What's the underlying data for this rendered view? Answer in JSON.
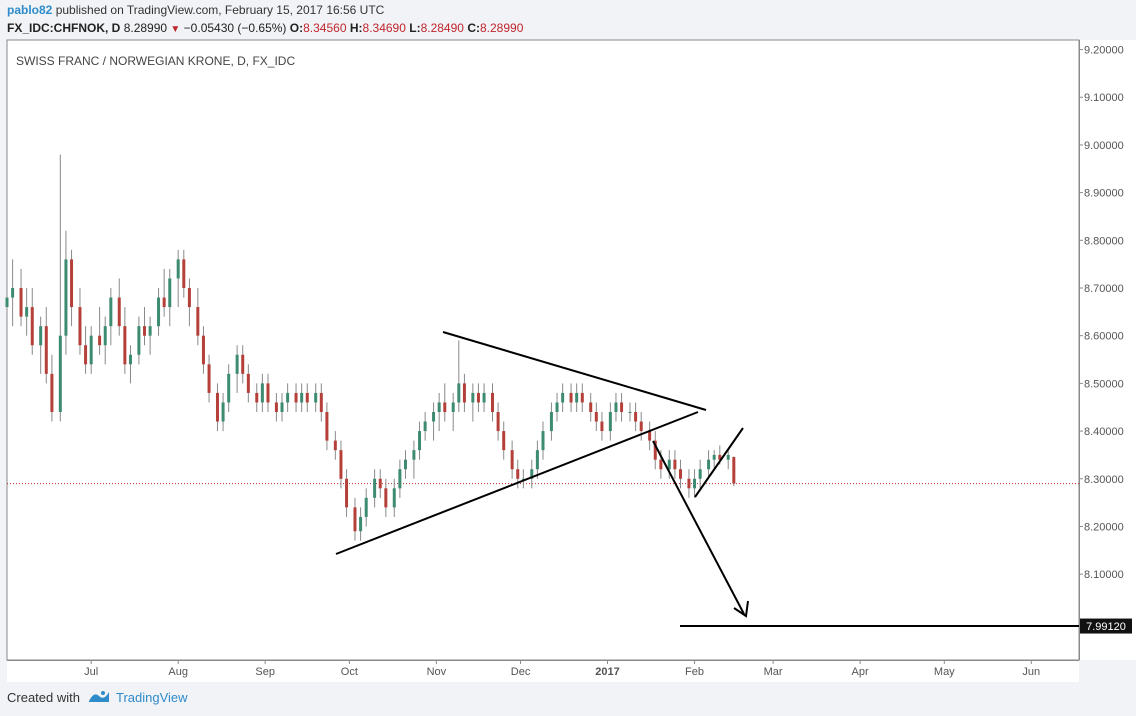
{
  "header": {
    "user": "pablo82",
    "published": "published on TradingView.com, February 15, 2017 16:56 UTC"
  },
  "ohlc": {
    "symbol": "FX_IDC:CHFNOK, D",
    "last": "8.28990",
    "change": "−0.05430 (−0.65%)",
    "o_label": "O:",
    "o": "8.34560",
    "h_label": "H:",
    "h": "8.34690",
    "l_label": "L:",
    "l": "8.28490",
    "c_label": "C:",
    "c": "8.28990"
  },
  "footer": {
    "created": "Created with",
    "brand": "TradingView"
  },
  "colors": {
    "up": "#3d8b70",
    "down": "#b5403a",
    "wick": "#8a8a8a",
    "accent": "#2f8ccb",
    "priceline": "#c0262d"
  },
  "chart_data": {
    "type": "candlestick",
    "title": "SWISS FRANC / NORWEGIAN KRONE, D, FX_IDC",
    "ylim": [
      7.92,
      9.22
    ],
    "y_ticks": [
      8.1,
      8.2,
      8.3,
      8.4,
      8.5,
      8.6,
      8.7,
      8.8,
      8.9,
      9.0,
      9.1,
      9.2
    ],
    "y_tick_labels": [
      "8.10000",
      "8.20000",
      "8.30000",
      "8.40000",
      "8.50000",
      "8.60000",
      "8.70000",
      "8.80000",
      "8.90000",
      "9.00000",
      "9.10000",
      "9.20000"
    ],
    "x_range": [
      "2016-06-01",
      "2017-06-18"
    ],
    "x_ticks": [
      {
        "date": "2016-07-01",
        "label": "Jul",
        "bold": false
      },
      {
        "date": "2016-08-01",
        "label": "Aug",
        "bold": false
      },
      {
        "date": "2016-09-01",
        "label": "Sep",
        "bold": false
      },
      {
        "date": "2016-10-01",
        "label": "Oct",
        "bold": false
      },
      {
        "date": "2016-11-01",
        "label": "Nov",
        "bold": false
      },
      {
        "date": "2016-12-01",
        "label": "Dec",
        "bold": false
      },
      {
        "date": "2017-01-01",
        "label": "2017",
        "bold": true
      },
      {
        "date": "2017-02-01",
        "label": "Feb",
        "bold": false
      },
      {
        "date": "2017-03-01",
        "label": "Mar",
        "bold": false
      },
      {
        "date": "2017-04-01",
        "label": "Apr",
        "bold": false
      },
      {
        "date": "2017-05-01",
        "label": "May",
        "bold": false
      },
      {
        "date": "2017-06-01",
        "label": "Jun",
        "bold": false
      }
    ],
    "last_price": 8.2899,
    "target_label": "7.99120",
    "target_price": 7.9912,
    "candles": [
      [
        "2016-06-01",
        8.66,
        8.72,
        8.58,
        8.68
      ],
      [
        "2016-06-03",
        8.68,
        8.76,
        8.62,
        8.7
      ],
      [
        "2016-06-06",
        8.7,
        8.74,
        8.62,
        8.64
      ],
      [
        "2016-06-08",
        8.64,
        8.7,
        8.6,
        8.66
      ],
      [
        "2016-06-10",
        8.66,
        8.7,
        8.56,
        8.58
      ],
      [
        "2016-06-13",
        8.58,
        8.64,
        8.52,
        8.62
      ],
      [
        "2016-06-15",
        8.62,
        8.66,
        8.5,
        8.52
      ],
      [
        "2016-06-17",
        8.52,
        8.56,
        8.42,
        8.44
      ],
      [
        "2016-06-20",
        8.44,
        8.98,
        8.42,
        8.6
      ],
      [
        "2016-06-22",
        8.6,
        8.82,
        8.56,
        8.76
      ],
      [
        "2016-06-24",
        8.76,
        8.78,
        8.62,
        8.66
      ],
      [
        "2016-06-27",
        8.66,
        8.7,
        8.56,
        8.58
      ],
      [
        "2016-06-29",
        8.58,
        8.62,
        8.52,
        8.54
      ],
      [
        "2016-07-01",
        8.54,
        8.62,
        8.52,
        8.6
      ],
      [
        "2016-07-04",
        8.6,
        8.66,
        8.56,
        8.58
      ],
      [
        "2016-07-06",
        8.58,
        8.64,
        8.54,
        8.62
      ],
      [
        "2016-07-08",
        8.62,
        8.7,
        8.58,
        8.68
      ],
      [
        "2016-07-11",
        8.68,
        8.72,
        8.6,
        8.62
      ],
      [
        "2016-07-13",
        8.62,
        8.66,
        8.52,
        8.54
      ],
      [
        "2016-07-15",
        8.54,
        8.58,
        8.5,
        8.56
      ],
      [
        "2016-07-18",
        8.56,
        8.64,
        8.54,
        8.62
      ],
      [
        "2016-07-20",
        8.62,
        8.66,
        8.58,
        8.6
      ],
      [
        "2016-07-22",
        8.6,
        8.64,
        8.56,
        8.62
      ],
      [
        "2016-07-25",
        8.62,
        8.7,
        8.6,
        8.68
      ],
      [
        "2016-07-27",
        8.68,
        8.74,
        8.64,
        8.66
      ],
      [
        "2016-07-29",
        8.66,
        8.74,
        8.62,
        8.72
      ],
      [
        "2016-08-01",
        8.72,
        8.78,
        8.66,
        8.76
      ],
      [
        "2016-08-03",
        8.76,
        8.78,
        8.68,
        8.7
      ],
      [
        "2016-08-05",
        8.7,
        8.72,
        8.62,
        8.66
      ],
      [
        "2016-08-08",
        8.66,
        8.7,
        8.58,
        8.6
      ],
      [
        "2016-08-10",
        8.6,
        8.62,
        8.52,
        8.54
      ],
      [
        "2016-08-12",
        8.54,
        8.56,
        8.46,
        8.48
      ],
      [
        "2016-08-15",
        8.48,
        8.5,
        8.4,
        8.42
      ],
      [
        "2016-08-17",
        8.42,
        8.48,
        8.4,
        8.46
      ],
      [
        "2016-08-19",
        8.46,
        8.54,
        8.44,
        8.52
      ],
      [
        "2016-08-22",
        8.52,
        8.58,
        8.48,
        8.56
      ],
      [
        "2016-08-24",
        8.56,
        8.58,
        8.5,
        8.52
      ],
      [
        "2016-08-26",
        8.52,
        8.54,
        8.46,
        8.48
      ],
      [
        "2016-08-29",
        8.48,
        8.5,
        8.44,
        8.46
      ],
      [
        "2016-08-31",
        8.46,
        8.52,
        8.44,
        8.5
      ],
      [
        "2016-09-02",
        8.5,
        8.52,
        8.44,
        8.46
      ],
      [
        "2016-09-05",
        8.46,
        8.48,
        8.42,
        8.44
      ],
      [
        "2016-09-07",
        8.44,
        8.48,
        8.42,
        8.46
      ],
      [
        "2016-09-09",
        8.46,
        8.5,
        8.44,
        8.48
      ],
      [
        "2016-09-12",
        8.48,
        8.5,
        8.44,
        8.46
      ],
      [
        "2016-09-14",
        8.46,
        8.5,
        8.44,
        8.48
      ],
      [
        "2016-09-16",
        8.48,
        8.5,
        8.44,
        8.46
      ],
      [
        "2016-09-19",
        8.46,
        8.5,
        8.44,
        8.48
      ],
      [
        "2016-09-21",
        8.48,
        8.5,
        8.42,
        8.44
      ],
      [
        "2016-09-23",
        8.44,
        8.46,
        8.36,
        8.38
      ],
      [
        "2016-09-26",
        8.38,
        8.4,
        8.34,
        8.36
      ],
      [
        "2016-09-28",
        8.36,
        8.38,
        8.28,
        8.3
      ],
      [
        "2016-09-30",
        8.3,
        8.32,
        8.22,
        8.24
      ],
      [
        "2016-10-03",
        8.24,
        8.26,
        8.17,
        8.19
      ],
      [
        "2016-10-05",
        8.19,
        8.24,
        8.17,
        8.22
      ],
      [
        "2016-10-07",
        8.22,
        8.28,
        8.2,
        8.26
      ],
      [
        "2016-10-10",
        8.26,
        8.32,
        8.24,
        8.3
      ],
      [
        "2016-10-12",
        8.3,
        8.32,
        8.26,
        8.28
      ],
      [
        "2016-10-14",
        8.28,
        8.3,
        8.22,
        8.24
      ],
      [
        "2016-10-17",
        8.24,
        8.3,
        8.22,
        8.28
      ],
      [
        "2016-10-19",
        8.28,
        8.34,
        8.26,
        8.32
      ],
      [
        "2016-10-21",
        8.32,
        8.36,
        8.3,
        8.34
      ],
      [
        "2016-10-24",
        8.34,
        8.38,
        8.3,
        8.36
      ],
      [
        "2016-10-26",
        8.36,
        8.42,
        8.34,
        8.4
      ],
      [
        "2016-10-28",
        8.4,
        8.44,
        8.38,
        8.42
      ],
      [
        "2016-10-31",
        8.42,
        8.46,
        8.38,
        8.44
      ],
      [
        "2016-11-02",
        8.44,
        8.48,
        8.4,
        8.46
      ],
      [
        "2016-11-04",
        8.46,
        8.5,
        8.42,
        8.44
      ],
      [
        "2016-11-07",
        8.44,
        8.48,
        8.4,
        8.46
      ],
      [
        "2016-11-09",
        8.46,
        8.59,
        8.44,
        8.5
      ],
      [
        "2016-11-11",
        8.5,
        8.52,
        8.44,
        8.46
      ],
      [
        "2016-11-14",
        8.46,
        8.5,
        8.42,
        8.48
      ],
      [
        "2016-11-16",
        8.48,
        8.5,
        8.44,
        8.46
      ],
      [
        "2016-11-18",
        8.46,
        8.5,
        8.44,
        8.48
      ],
      [
        "2016-11-21",
        8.48,
        8.5,
        8.42,
        8.44
      ],
      [
        "2016-11-23",
        8.44,
        8.46,
        8.38,
        8.4
      ],
      [
        "2016-11-25",
        8.4,
        8.42,
        8.34,
        8.36
      ],
      [
        "2016-11-28",
        8.36,
        8.38,
        8.3,
        8.32
      ],
      [
        "2016-11-30",
        8.32,
        8.34,
        8.28,
        8.3
      ],
      [
        "2016-12-02",
        8.3,
        8.32,
        8.28,
        8.3
      ],
      [
        "2016-12-05",
        8.3,
        8.34,
        8.28,
        8.32
      ],
      [
        "2016-12-07",
        8.32,
        8.38,
        8.3,
        8.36
      ],
      [
        "2016-12-09",
        8.36,
        8.42,
        8.34,
        8.4
      ],
      [
        "2016-12-12",
        8.4,
        8.46,
        8.38,
        8.44
      ],
      [
        "2016-12-14",
        8.44,
        8.48,
        8.42,
        8.46
      ],
      [
        "2016-12-16",
        8.46,
        8.5,
        8.44,
        8.48
      ],
      [
        "2016-12-19",
        8.48,
        8.5,
        8.44,
        8.46
      ],
      [
        "2016-12-21",
        8.46,
        8.5,
        8.44,
        8.48
      ],
      [
        "2016-12-23",
        8.48,
        8.5,
        8.44,
        8.46
      ],
      [
        "2016-12-26",
        8.46,
        8.48,
        8.42,
        8.44
      ],
      [
        "2016-12-28",
        8.44,
        8.46,
        8.4,
        8.42
      ],
      [
        "2016-12-30",
        8.42,
        8.44,
        8.38,
        8.4
      ],
      [
        "2017-01-02",
        8.4,
        8.46,
        8.38,
        8.44
      ],
      [
        "2017-01-04",
        8.44,
        8.48,
        8.42,
        8.46
      ],
      [
        "2017-01-06",
        8.46,
        8.48,
        8.42,
        8.44
      ],
      [
        "2017-01-09",
        8.44,
        8.46,
        8.42,
        8.44
      ],
      [
        "2017-01-11",
        8.44,
        8.46,
        8.4,
        8.42
      ],
      [
        "2017-01-13",
        8.42,
        8.44,
        8.38,
        8.4
      ],
      [
        "2017-01-16",
        8.4,
        8.42,
        8.36,
        8.38
      ],
      [
        "2017-01-18",
        8.38,
        8.4,
        8.32,
        8.34
      ],
      [
        "2017-01-20",
        8.34,
        8.36,
        8.3,
        8.32
      ],
      [
        "2017-01-23",
        8.32,
        8.36,
        8.3,
        8.34
      ],
      [
        "2017-01-25",
        8.34,
        8.36,
        8.3,
        8.32
      ],
      [
        "2017-01-27",
        8.32,
        8.34,
        8.28,
        8.3
      ],
      [
        "2017-01-30",
        8.3,
        8.32,
        8.26,
        8.28
      ],
      [
        "2017-02-01",
        8.28,
        8.32,
        8.26,
        8.3
      ],
      [
        "2017-02-03",
        8.3,
        8.34,
        8.28,
        8.32
      ],
      [
        "2017-02-06",
        8.32,
        8.36,
        8.3,
        8.34
      ],
      [
        "2017-02-08",
        8.34,
        8.36,
        8.32,
        8.35
      ],
      [
        "2017-02-10",
        8.35,
        8.37,
        8.33,
        8.34
      ],
      [
        "2017-02-13",
        8.34,
        8.36,
        8.32,
        8.35
      ],
      [
        "2017-02-15",
        8.3456,
        8.3469,
        8.2849,
        8.2899
      ]
    ]
  }
}
